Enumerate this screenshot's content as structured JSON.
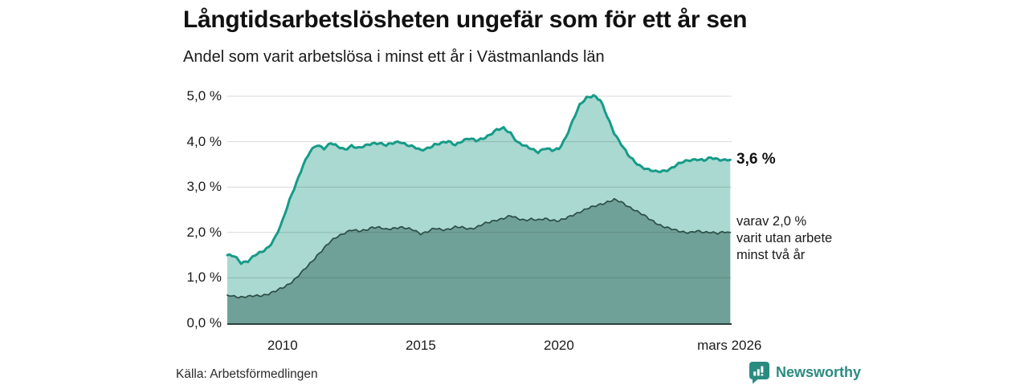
{
  "header": {
    "title": "Långtidsarbetslösheten ungefär som för ett år sen",
    "subtitle": "Andel som varit arbetslösa i minst ett år i Västmanlands län"
  },
  "chart_data": {
    "type": "area",
    "title": "Långtidsarbetslösheten ungefär som för ett år sen",
    "subtitle": "Andel som varit arbetslösa i minst ett år i Västmanlands län",
    "x_domain": [
      2008,
      2026.25
    ],
    "ylim": [
      0,
      5
    ],
    "grid": true,
    "y_ticks": [
      {
        "value": 5.0,
        "label": "5,0 %"
      },
      {
        "value": 4.0,
        "label": "4,0 %"
      },
      {
        "value": 3.0,
        "label": "3,0 %"
      },
      {
        "value": 2.0,
        "label": "2,0 %"
      },
      {
        "value": 1.0,
        "label": "1,0 %"
      },
      {
        "value": 0.0,
        "label": "0,0 %"
      }
    ],
    "x_ticks": [
      {
        "value": 2010,
        "label": "2010"
      },
      {
        "value": 2015,
        "label": "2015"
      },
      {
        "value": 2020,
        "label": "2020"
      },
      {
        "value": 2026.17,
        "label": "mars 2026"
      }
    ],
    "x": [
      2008.0,
      2008.25,
      2008.5,
      2008.75,
      2009.0,
      2009.25,
      2009.5,
      2009.75,
      2010.0,
      2010.25,
      2010.5,
      2010.75,
      2011.0,
      2011.25,
      2011.5,
      2011.75,
      2012.0,
      2012.25,
      2012.5,
      2012.75,
      2013.0,
      2013.25,
      2013.5,
      2013.75,
      2014.0,
      2014.25,
      2014.5,
      2014.75,
      2015.0,
      2015.25,
      2015.5,
      2015.75,
      2016.0,
      2016.25,
      2016.5,
      2016.75,
      2017.0,
      2017.25,
      2017.5,
      2017.75,
      2018.0,
      2018.25,
      2018.5,
      2018.75,
      2019.0,
      2019.25,
      2019.5,
      2019.75,
      2020.0,
      2020.25,
      2020.5,
      2020.75,
      2021.0,
      2021.25,
      2021.5,
      2021.75,
      2022.0,
      2022.25,
      2022.5,
      2022.75,
      2023.0,
      2023.25,
      2023.5,
      2023.75,
      2024.0,
      2024.25,
      2024.5,
      2024.75,
      2025.0,
      2025.25,
      2025.5,
      2025.75,
      2026.0,
      2026.2
    ],
    "series": [
      {
        "name": "Arbetslösa minst ett år",
        "line_color": "#169b88",
        "fill_color": "#a9d9d0",
        "values": [
          1.5,
          1.47,
          1.33,
          1.38,
          1.5,
          1.56,
          1.68,
          1.92,
          2.25,
          2.7,
          3.1,
          3.5,
          3.78,
          3.92,
          3.86,
          3.98,
          3.88,
          3.82,
          3.92,
          3.86,
          3.9,
          3.96,
          3.98,
          3.92,
          3.96,
          4.0,
          3.94,
          3.88,
          3.8,
          3.86,
          3.94,
          3.96,
          4.0,
          3.94,
          4.02,
          4.06,
          4.02,
          4.08,
          4.15,
          4.25,
          4.3,
          4.2,
          3.98,
          3.9,
          3.85,
          3.78,
          3.85,
          3.8,
          3.85,
          4.1,
          4.45,
          4.8,
          4.98,
          5.02,
          4.9,
          4.55,
          4.2,
          3.95,
          3.7,
          3.55,
          3.45,
          3.38,
          3.33,
          3.35,
          3.4,
          3.48,
          3.55,
          3.6,
          3.62,
          3.58,
          3.64,
          3.62,
          3.6,
          3.6
        ]
      },
      {
        "name": "Utan arbete minst två år",
        "line_color": "#2b4d45",
        "fill_color": "#70a198",
        "values": [
          0.62,
          0.6,
          0.58,
          0.58,
          0.6,
          0.62,
          0.65,
          0.7,
          0.78,
          0.88,
          1.0,
          1.15,
          1.32,
          1.5,
          1.65,
          1.8,
          1.92,
          2.0,
          2.05,
          2.02,
          2.06,
          2.12,
          2.1,
          2.06,
          2.1,
          2.12,
          2.08,
          2.05,
          1.98,
          2.02,
          2.08,
          2.06,
          2.08,
          2.12,
          2.1,
          2.08,
          2.12,
          2.18,
          2.22,
          2.28,
          2.32,
          2.36,
          2.3,
          2.28,
          2.3,
          2.26,
          2.3,
          2.28,
          2.26,
          2.3,
          2.38,
          2.46,
          2.52,
          2.56,
          2.62,
          2.68,
          2.72,
          2.66,
          2.58,
          2.5,
          2.4,
          2.3,
          2.22,
          2.14,
          2.08,
          2.04,
          2.02,
          2.0,
          2.02,
          2.0,
          2.02,
          1.98,
          2.0,
          2.0
        ]
      }
    ],
    "end_labels": {
      "total": "3,6 %",
      "breakdown": [
        "varav 2,0 %",
        "varit utan arbete",
        "minst två år"
      ]
    },
    "legend_position": "right-annotations"
  },
  "colors": {
    "line_total": "#169b88",
    "fill_total": "#a9d9d0",
    "line_two_years": "#2b4d45",
    "fill_two_years": "#70a198",
    "axis": "#28423c",
    "grid": "rgba(0,0,0,0.15)",
    "brand_teal": "#2a8b80"
  },
  "footer": {
    "source": "Källa: Arbetsförmedlingen",
    "brand": "Newsworthy",
    "brand_icon": "bar-chart-bubble-icon"
  }
}
